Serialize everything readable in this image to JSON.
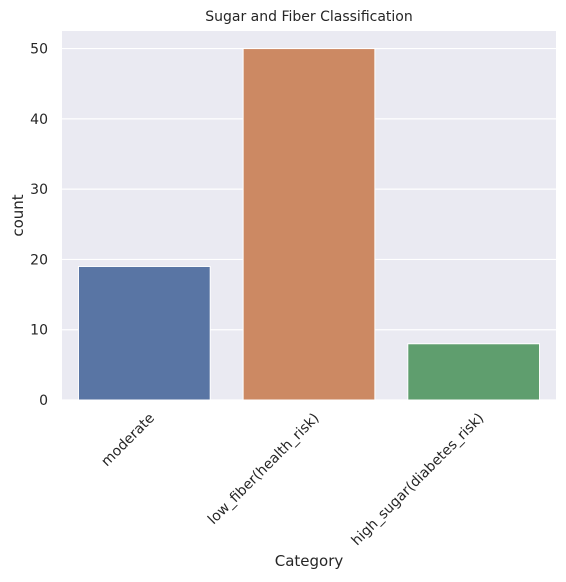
{
  "chart_data": {
    "type": "bar",
    "title": "Sugar and Fiber Classification",
    "xlabel": "Category",
    "ylabel": "count",
    "categories": [
      "moderate",
      "low_fiber(health_risk)",
      "high_sugar(diabetes_risk)"
    ],
    "values": [
      19,
      50,
      8
    ],
    "ylim": [
      0,
      52.5
    ],
    "yticks": [
      0,
      10,
      20,
      30,
      40,
      50
    ],
    "grid": true,
    "legend": "none",
    "colors": [
      "#5975a4",
      "#cc8963",
      "#5f9e6e"
    ],
    "background": "#eaeaf2"
  }
}
